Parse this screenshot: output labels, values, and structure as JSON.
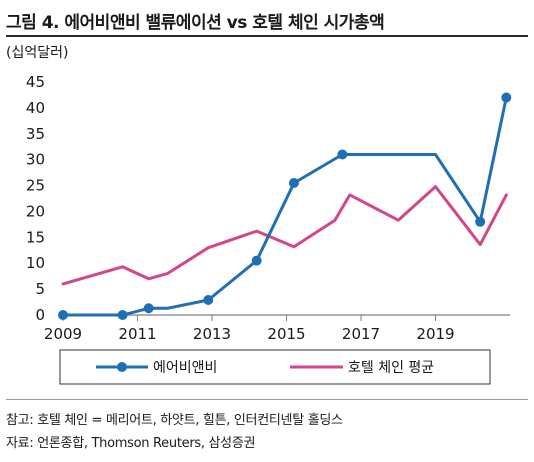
{
  "figure": {
    "title": "그림 4. 에어비앤비 밸류에이션 vs 호텔 체인 시가총액",
    "note": "참고: 호텔 체인 = 메리어트, 하얏트, 힐튼, 인터컨티넨탈 홀딩스",
    "source": "자료: 언론종합, Thomson Reuters, 삼성증권"
  },
  "chart_data": {
    "type": "line",
    "unit_label": "(십억달러)",
    "xlim": [
      2009,
      2021
    ],
    "ylim": [
      0,
      45
    ],
    "x_ticks": [
      2009,
      2011,
      2013,
      2015,
      2017,
      2019
    ],
    "y_ticks": [
      0,
      5,
      10,
      15,
      20,
      25,
      30,
      35,
      40,
      45
    ],
    "grid": false,
    "legend_position": "bottom",
    "series": [
      {
        "name": "에어비앤비",
        "color": "#1f6fb5",
        "markers": true,
        "points": [
          {
            "x": 2009.0,
            "y": 0,
            "marker": true
          },
          {
            "x": 2010.6,
            "y": 0,
            "marker": true
          },
          {
            "x": 2011.3,
            "y": 1.3,
            "marker": true
          },
          {
            "x": 2011.8,
            "y": 1.3,
            "marker": false
          },
          {
            "x": 2012.9,
            "y": 2.9,
            "marker": true
          },
          {
            "x": 2014.2,
            "y": 10.5,
            "marker": true
          },
          {
            "x": 2015.2,
            "y": 25.5,
            "marker": true
          },
          {
            "x": 2016.5,
            "y": 31,
            "marker": true
          },
          {
            "x": 2019.0,
            "y": 31,
            "marker": false
          },
          {
            "x": 2020.2,
            "y": 18,
            "marker": true
          },
          {
            "x": 2020.9,
            "y": 42,
            "marker": true
          }
        ]
      },
      {
        "name": "호텔 체인 평균",
        "color": "#d4458a",
        "markers": false,
        "points": [
          {
            "x": 2009.0,
            "y": 6
          },
          {
            "x": 2010.6,
            "y": 9.3
          },
          {
            "x": 2011.3,
            "y": 7
          },
          {
            "x": 2011.8,
            "y": 8
          },
          {
            "x": 2012.9,
            "y": 13
          },
          {
            "x": 2014.2,
            "y": 16.2
          },
          {
            "x": 2015.2,
            "y": 13.2
          },
          {
            "x": 2016.3,
            "y": 18.3
          },
          {
            "x": 2016.7,
            "y": 23.2
          },
          {
            "x": 2018.0,
            "y": 18.3
          },
          {
            "x": 2019.0,
            "y": 24.8
          },
          {
            "x": 2020.2,
            "y": 13.6
          },
          {
            "x": 2020.9,
            "y": 23.2
          }
        ]
      }
    ]
  }
}
